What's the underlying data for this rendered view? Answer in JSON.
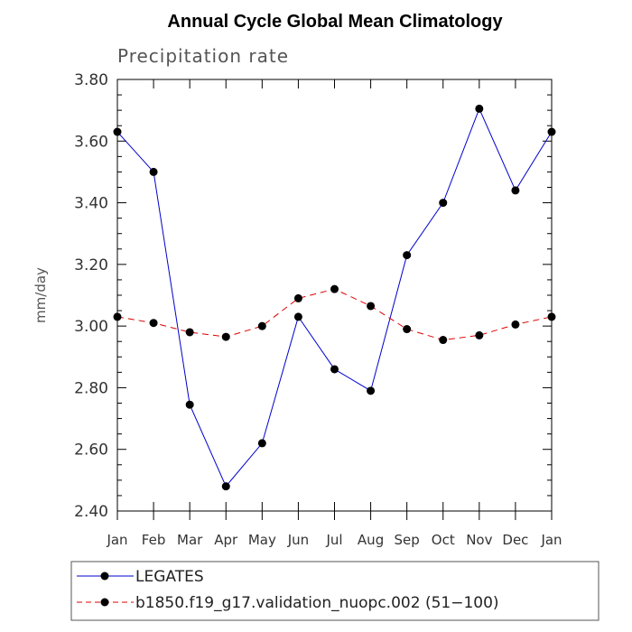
{
  "chart_data": {
    "type": "line",
    "title": "Annual Cycle Global Mean Climatology",
    "subtitle": "Precipitation rate",
    "xlabel": "",
    "ylabel": "mm/day",
    "ylim": [
      2.4,
      3.8
    ],
    "yticks": [
      "2.40",
      "2.60",
      "2.80",
      "3.00",
      "3.20",
      "3.40",
      "3.60",
      "3.80"
    ],
    "categories": [
      "Jan",
      "Feb",
      "Mar",
      "Apr",
      "May",
      "Jun",
      "Jul",
      "Aug",
      "Sep",
      "Oct",
      "Nov",
      "Dec",
      "Jan"
    ],
    "series": [
      {
        "name": "LEGATES",
        "color": "#0000cc",
        "dash": "solid",
        "values": [
          3.63,
          3.5,
          2.745,
          2.48,
          2.62,
          3.03,
          2.86,
          2.79,
          3.23,
          3.4,
          3.705,
          3.44,
          3.63
        ]
      },
      {
        "name": "b1850.f19_g17.validation_nuopc.002 (51−100)",
        "color": "#dd0000",
        "dash": "dashed",
        "values": [
          3.03,
          3.01,
          2.98,
          2.965,
          3.0,
          3.09,
          3.12,
          3.065,
          2.99,
          2.955,
          2.97,
          3.005,
          3.03
        ]
      }
    ]
  }
}
